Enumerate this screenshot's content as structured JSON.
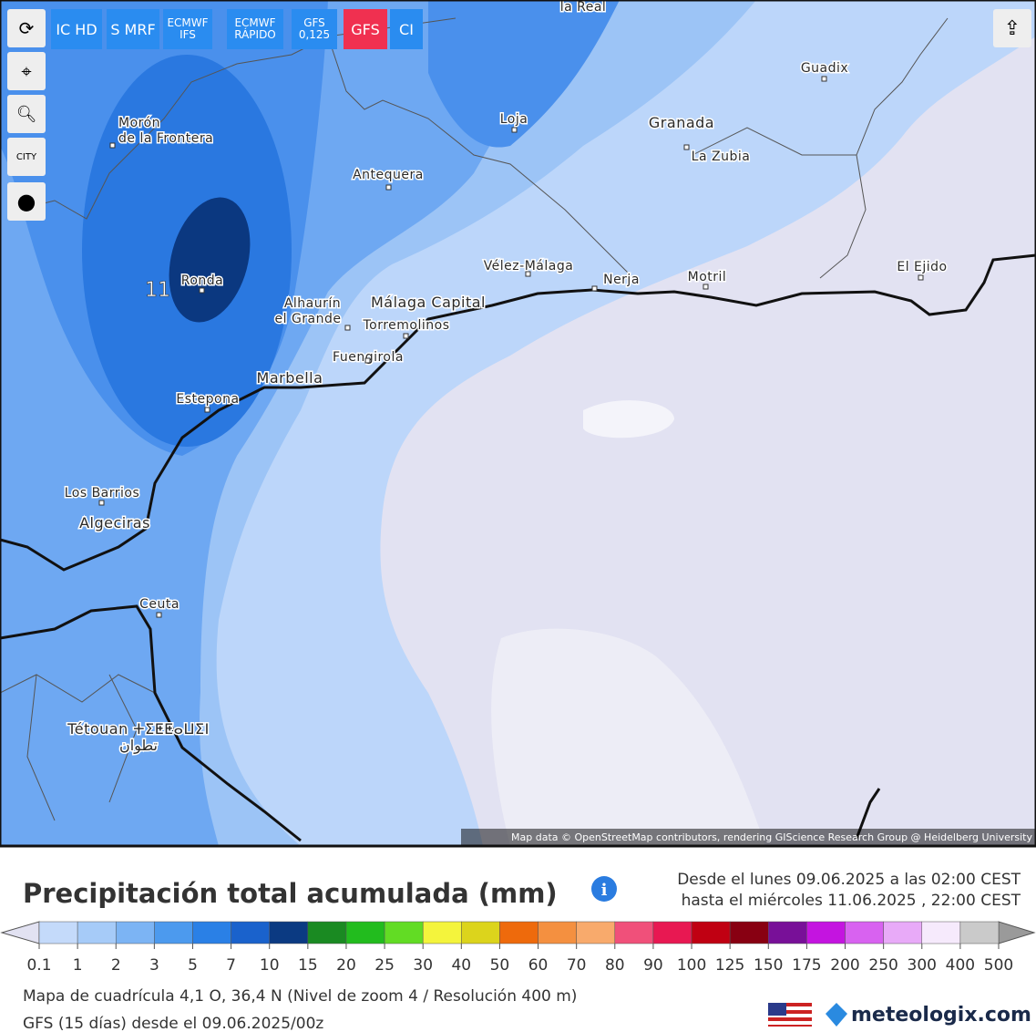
{
  "toolbar": {
    "buttons": [
      "IC HD",
      "S MRF",
      "ECMWF IFS",
      "ECMWF RÁPIDO",
      "GFS 0,125",
      "GFS",
      "CI"
    ],
    "city_toggle": "CITY"
  },
  "map": {
    "labels": [
      "la Real",
      "Guadix",
      "Morón",
      "de la Frontera",
      "Loja",
      "Granada",
      "La Zubia",
      "Antequera",
      "Vélez-Málaga",
      "Nerja",
      "Motril",
      "El Ejido",
      "Ronda",
      "Alhaurín",
      "el Grande",
      "Málaga Capital",
      "Torremolinos",
      "Fuengirola",
      "Marbella",
      "Estepona",
      "Los Barrios",
      "Algeciras",
      "Ceuta",
      "Tétouan ⵜⵉⵟⵟⴰⵡⵉⵏ",
      "تطوان"
    ],
    "max_value": 11,
    "attribution": "Map data © OpenStreetMap contributors, rendering GIScience Research Group @ Heidelberg University"
  },
  "legend": {
    "title": "Precipitación total acumulada (mm)",
    "period": [
      "Desde el lunes 09.06.2025 a  las 02:00  CEST",
      "hasta el miércoles 11.06.2025 , 22:00  CEST"
    ],
    "ticks": [
      0.1,
      1,
      2,
      3,
      5,
      7,
      10,
      15,
      20,
      25,
      30,
      40,
      50,
      60,
      70,
      80,
      90,
      100,
      125,
      150,
      175,
      200,
      250,
      300,
      400,
      500
    ],
    "under_color": "#e2e2f2",
    "colors": [
      "#c4dafa",
      "#a6cbf8",
      "#7cb4f4",
      "#4c9aee",
      "#2a80e6",
      "#1a62cc",
      "#0b3a82",
      "#1a8a22",
      "#22bc1e",
      "#62dc24",
      "#f4f43c",
      "#dcd41c",
      "#ee6a0c",
      "#f49040",
      "#f8aa6c",
      "#f0507a",
      "#e81852",
      "#c00012",
      "#880012",
      "#781098",
      "#c414e0",
      "#d862f0",
      "#e8aaf8",
      "#f6eafc",
      "#cacaca"
    ],
    "over_color": "#9a9a9a"
  },
  "footer": {
    "grid": "Mapa de cuadrícula 4,1 O, 36,4 N (Nivel de zoom 4 / Resolución 400 m)",
    "model": "GFS (15 días) desde el 09.06.2025/00z",
    "brand": "meteologix.com"
  }
}
